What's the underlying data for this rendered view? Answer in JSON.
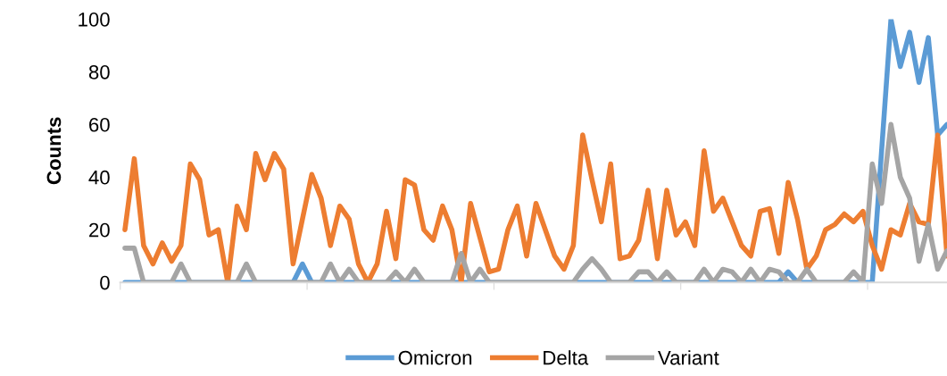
{
  "chart_data": {
    "type": "line",
    "ylabel": "Counts",
    "ylim": [
      0,
      100
    ],
    "yticks": [
      0,
      20,
      40,
      60,
      80,
      100
    ],
    "grid": false,
    "legend": "bottom",
    "marker": "none",
    "line_style": "solid",
    "categories": [
      null,
      null,
      null,
      null,
      null,
      null,
      null,
      null,
      null,
      null,
      null,
      null,
      null,
      null,
      null,
      null,
      null,
      null,
      null,
      null,
      null,
      null,
      null,
      null,
      null,
      null,
      null,
      null,
      null,
      null,
      null,
      null,
      null,
      null,
      null,
      null,
      null,
      null,
      null,
      null,
      null,
      null,
      null,
      null,
      null,
      null,
      null,
      null,
      null,
      null,
      null,
      null,
      null,
      null,
      null,
      null,
      null,
      null,
      null,
      null,
      null,
      null,
      null,
      null,
      null,
      null,
      null,
      null,
      null,
      null,
      null,
      null,
      null,
      null,
      null,
      null,
      null,
      null,
      null,
      null,
      null,
      null,
      null,
      null,
      null,
      null,
      null,
      null,
      null
    ],
    "series": [
      {
        "name": "Omicron",
        "color": "#5b9bd5",
        "values": [
          0,
          0,
          0,
          0,
          0,
          0,
          0,
          0,
          0,
          0,
          0,
          0,
          0,
          0,
          0,
          0,
          0,
          0,
          0,
          7,
          0,
          0,
          0,
          0,
          0,
          0,
          0,
          0,
          0,
          0,
          0,
          0,
          0,
          0,
          0,
          0,
          0,
          0,
          0,
          0,
          0,
          0,
          0,
          0,
          0,
          0,
          0,
          0,
          0,
          0,
          0,
          0,
          0,
          0,
          0,
          0,
          0,
          0,
          0,
          0,
          0,
          0,
          0,
          0,
          0,
          0,
          0,
          0,
          0,
          0,
          0,
          4,
          0,
          0,
          0,
          0,
          0,
          0,
          0,
          0,
          0,
          50,
          100,
          82,
          95,
          76,
          93,
          56,
          60
        ]
      },
      {
        "name": "Delta",
        "color": "#ed7d31",
        "values": [
          20,
          47,
          14,
          7,
          15,
          8,
          14,
          45,
          39,
          18,
          20,
          0,
          29,
          20,
          49,
          39,
          49,
          43,
          7,
          24,
          41,
          32,
          14,
          29,
          24,
          7,
          0,
          7,
          27,
          9,
          39,
          37,
          20,
          16,
          29,
          20,
          0,
          30,
          17,
          4,
          5,
          20,
          29,
          10,
          30,
          20,
          10,
          5,
          14,
          56,
          39,
          23,
          45,
          9,
          10,
          16,
          35,
          9,
          35,
          18,
          23,
          14,
          50,
          27,
          32,
          23,
          14,
          10,
          27,
          28,
          11,
          38,
          24,
          5,
          10,
          20,
          22,
          26,
          23,
          27,
          14,
          5,
          20,
          18,
          30,
          23,
          22,
          56,
          10
        ]
      },
      {
        "name": "Variant",
        "color": "#a5a5a5",
        "values": [
          13,
          13,
          0,
          0,
          0,
          0,
          7,
          0,
          0,
          0,
          0,
          0,
          0,
          7,
          0,
          0,
          0,
          0,
          0,
          0,
          0,
          0,
          7,
          0,
          5,
          0,
          0,
          0,
          0,
          4,
          0,
          5,
          0,
          0,
          0,
          0,
          11,
          0,
          5,
          0,
          0,
          0,
          0,
          0,
          0,
          0,
          0,
          0,
          0,
          5,
          9,
          5,
          0,
          0,
          0,
          4,
          4,
          0,
          4,
          0,
          0,
          0,
          5,
          0,
          5,
          4,
          0,
          5,
          0,
          5,
          4,
          0,
          0,
          5,
          0,
          0,
          0,
          0,
          4,
          0,
          45,
          30,
          60,
          40,
          32,
          8,
          22,
          5,
          12
        ]
      }
    ]
  }
}
